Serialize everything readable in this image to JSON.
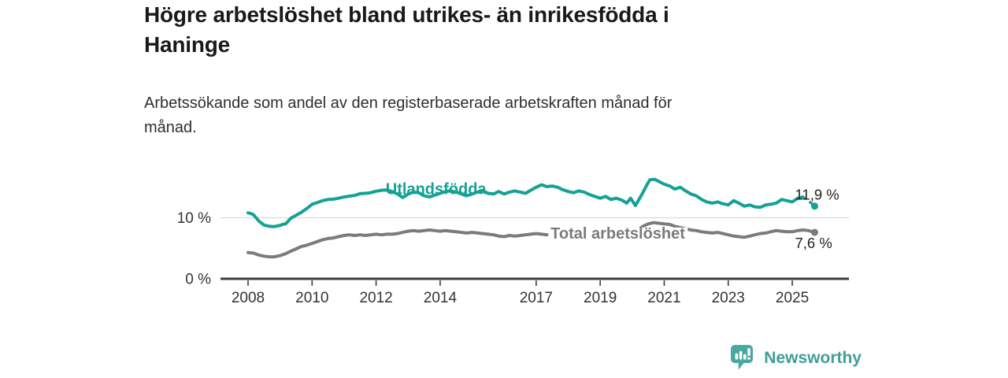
{
  "header": {
    "title_lines": [
      "Högre arbetslöshet bland utrikes- än inrikesfödda i",
      "Haninge"
    ],
    "subtitle_lines": [
      "Arbetssökande som andel av den registerbaserade arbetskraften månad för",
      "månad."
    ]
  },
  "chart_data": {
    "type": "line",
    "title": "Högre arbetslöshet bland utrikes- än inrikesfödda i Haninge",
    "subtitle": "Arbetssökande som andel av den registerbaserade arbetskraften månad för månad.",
    "grid": "horizontal-only",
    "legend": "inline-labels",
    "x_axis": {
      "unit": "year",
      "ticks": [
        2008,
        2010,
        2012,
        2014,
        2017,
        2019,
        2021,
        2023,
        2025
      ],
      "range_years": [
        2007.15,
        2026.8
      ]
    },
    "y_axis": {
      "unit": "%",
      "ticks": [
        {
          "value": 0,
          "label": "0 %"
        },
        {
          "value": 10,
          "label": "10 %"
        }
      ],
      "range": [
        0,
        18
      ]
    },
    "series": [
      {
        "name": "Total arbetslöshet",
        "color": "#7b7b7b",
        "end_value": 7.6,
        "end_label": "7,6 %",
        "end_label_position": "below",
        "label_anchor": {
          "year": 2017.45,
          "value": 6.6
        },
        "label_mask": true,
        "points": [
          [
            2008.0,
            4.3
          ],
          [
            2008.17,
            4.2
          ],
          [
            2008.33,
            3.9
          ],
          [
            2008.5,
            3.7
          ],
          [
            2008.67,
            3.6
          ],
          [
            2008.83,
            3.6
          ],
          [
            2009.0,
            3.8
          ],
          [
            2009.17,
            4.1
          ],
          [
            2009.33,
            4.5
          ],
          [
            2009.5,
            4.9
          ],
          [
            2009.67,
            5.3
          ],
          [
            2009.83,
            5.5
          ],
          [
            2010.0,
            5.8
          ],
          [
            2010.17,
            6.1
          ],
          [
            2010.33,
            6.4
          ],
          [
            2010.5,
            6.6
          ],
          [
            2010.67,
            6.7
          ],
          [
            2010.83,
            6.9
          ],
          [
            2011.0,
            7.1
          ],
          [
            2011.17,
            7.2
          ],
          [
            2011.33,
            7.1
          ],
          [
            2011.5,
            7.2
          ],
          [
            2011.67,
            7.1
          ],
          [
            2011.83,
            7.2
          ],
          [
            2012.0,
            7.3
          ],
          [
            2012.17,
            7.2
          ],
          [
            2012.33,
            7.3
          ],
          [
            2012.5,
            7.3
          ],
          [
            2012.67,
            7.4
          ],
          [
            2012.83,
            7.6
          ],
          [
            2013.0,
            7.8
          ],
          [
            2013.17,
            7.9
          ],
          [
            2013.33,
            7.8
          ],
          [
            2013.5,
            7.9
          ],
          [
            2013.67,
            8.0
          ],
          [
            2013.83,
            7.9
          ],
          [
            2014.0,
            7.8
          ],
          [
            2014.17,
            7.9
          ],
          [
            2014.33,
            7.8
          ],
          [
            2014.5,
            7.7
          ],
          [
            2014.67,
            7.6
          ],
          [
            2014.83,
            7.5
          ],
          [
            2015.0,
            7.6
          ],
          [
            2015.17,
            7.5
          ],
          [
            2015.33,
            7.4
          ],
          [
            2015.5,
            7.3
          ],
          [
            2015.67,
            7.2
          ],
          [
            2015.83,
            7.0
          ],
          [
            2016.0,
            6.9
          ],
          [
            2016.17,
            7.1
          ],
          [
            2016.33,
            7.0
          ],
          [
            2016.5,
            7.1
          ],
          [
            2016.67,
            7.2
          ],
          [
            2016.83,
            7.3
          ],
          [
            2017.0,
            7.4
          ],
          [
            2017.17,
            7.3
          ],
          [
            2017.33,
            7.2
          ],
          [
            2017.5,
            7.3
          ],
          [
            2017.67,
            7.2
          ],
          [
            2017.83,
            7.1
          ],
          [
            2018.0,
            7.2
          ],
          [
            2018.17,
            7.3
          ],
          [
            2018.33,
            7.2
          ],
          [
            2018.5,
            7.1
          ],
          [
            2018.67,
            7.0
          ],
          [
            2018.83,
            6.9
          ],
          [
            2019.0,
            7.0
          ],
          [
            2019.17,
            7.1
          ],
          [
            2019.33,
            7.0
          ],
          [
            2019.5,
            7.1
          ],
          [
            2019.67,
            7.0
          ],
          [
            2019.83,
            7.2
          ],
          [
            2020.0,
            7.4
          ],
          [
            2020.17,
            7.9
          ],
          [
            2020.33,
            8.6
          ],
          [
            2020.5,
            9.0
          ],
          [
            2020.67,
            9.2
          ],
          [
            2020.83,
            9.1
          ],
          [
            2021.0,
            9.0
          ],
          [
            2021.17,
            8.9
          ],
          [
            2021.33,
            8.6
          ],
          [
            2021.5,
            8.4
          ],
          [
            2021.67,
            8.2
          ],
          [
            2021.83,
            8.0
          ],
          [
            2022.0,
            7.9
          ],
          [
            2022.17,
            7.7
          ],
          [
            2022.33,
            7.6
          ],
          [
            2022.5,
            7.5
          ],
          [
            2022.67,
            7.6
          ],
          [
            2022.83,
            7.4
          ],
          [
            2023.0,
            7.2
          ],
          [
            2023.17,
            7.0
          ],
          [
            2023.33,
            6.9
          ],
          [
            2023.5,
            6.8
          ],
          [
            2023.67,
            7.0
          ],
          [
            2023.83,
            7.2
          ],
          [
            2024.0,
            7.4
          ],
          [
            2024.17,
            7.5
          ],
          [
            2024.33,
            7.7
          ],
          [
            2024.5,
            7.9
          ],
          [
            2024.67,
            7.8
          ],
          [
            2024.83,
            7.7
          ],
          [
            2025.0,
            7.7
          ],
          [
            2025.17,
            7.9
          ],
          [
            2025.33,
            8.0
          ],
          [
            2025.5,
            7.9
          ],
          [
            2025.7,
            7.6
          ]
        ]
      },
      {
        "name": "Utlandsfödda",
        "color": "#14a295",
        "end_value": 11.9,
        "end_label": "11,9 %",
        "end_label_position": "above",
        "label_anchor": {
          "year": 2012.3,
          "value": 13.85
        },
        "label_mask": false,
        "points": [
          [
            2008.0,
            10.8
          ],
          [
            2008.08,
            10.7
          ],
          [
            2008.17,
            10.5
          ],
          [
            2008.33,
            9.5
          ],
          [
            2008.5,
            8.8
          ],
          [
            2008.67,
            8.6
          ],
          [
            2008.83,
            8.55
          ],
          [
            2009.0,
            8.75
          ],
          [
            2009.08,
            8.9
          ],
          [
            2009.17,
            9.0
          ],
          [
            2009.25,
            9.4
          ],
          [
            2009.33,
            9.9
          ],
          [
            2009.5,
            10.4
          ],
          [
            2009.67,
            10.9
          ],
          [
            2009.83,
            11.5
          ],
          [
            2010.0,
            12.2
          ],
          [
            2010.17,
            12.5
          ],
          [
            2010.33,
            12.8
          ],
          [
            2010.5,
            13.0
          ],
          [
            2010.67,
            13.05
          ],
          [
            2010.83,
            13.2
          ],
          [
            2011.0,
            13.4
          ],
          [
            2011.17,
            13.55
          ],
          [
            2011.33,
            13.65
          ],
          [
            2011.5,
            13.95
          ],
          [
            2011.67,
            14.0
          ],
          [
            2011.83,
            14.1
          ],
          [
            2012.0,
            14.35
          ],
          [
            2012.17,
            14.5
          ],
          [
            2012.33,
            14.55
          ],
          [
            2012.5,
            14.3
          ],
          [
            2012.67,
            13.9
          ],
          [
            2012.83,
            13.3
          ],
          [
            2013.0,
            13.9
          ],
          [
            2013.17,
            14.2
          ],
          [
            2013.33,
            14.1
          ],
          [
            2013.5,
            13.6
          ],
          [
            2013.67,
            13.4
          ],
          [
            2013.83,
            13.7
          ],
          [
            2014.0,
            14.0
          ],
          [
            2014.17,
            14.3
          ],
          [
            2014.33,
            14.4
          ],
          [
            2014.5,
            14.2
          ],
          [
            2014.67,
            13.9
          ],
          [
            2014.83,
            13.6
          ],
          [
            2015.0,
            13.9
          ],
          [
            2015.17,
            14.2
          ],
          [
            2015.33,
            14.4
          ],
          [
            2015.5,
            14.0
          ],
          [
            2015.67,
            13.9
          ],
          [
            2015.83,
            14.3
          ],
          [
            2016.0,
            13.9
          ],
          [
            2016.17,
            14.2
          ],
          [
            2016.33,
            14.4
          ],
          [
            2016.5,
            14.2
          ],
          [
            2016.67,
            14.0
          ],
          [
            2016.83,
            14.5
          ],
          [
            2017.0,
            15.0
          ],
          [
            2017.17,
            15.4
          ],
          [
            2017.33,
            15.1
          ],
          [
            2017.5,
            15.2
          ],
          [
            2017.67,
            15.0
          ],
          [
            2017.83,
            14.6
          ],
          [
            2018.0,
            14.3
          ],
          [
            2018.17,
            14.1
          ],
          [
            2018.33,
            14.4
          ],
          [
            2018.5,
            14.2
          ],
          [
            2018.67,
            13.8
          ],
          [
            2018.83,
            13.5
          ],
          [
            2019.0,
            13.2
          ],
          [
            2019.17,
            13.5
          ],
          [
            2019.33,
            13.0
          ],
          [
            2019.5,
            13.2
          ],
          [
            2019.67,
            12.9
          ],
          [
            2019.83,
            12.4
          ],
          [
            2019.95,
            13.2
          ],
          [
            2020.1,
            12.0
          ],
          [
            2020.3,
            13.8
          ],
          [
            2020.45,
            15.3
          ],
          [
            2020.55,
            16.2
          ],
          [
            2020.7,
            16.3
          ],
          [
            2020.85,
            15.9
          ],
          [
            2021.0,
            15.5
          ],
          [
            2021.17,
            15.2
          ],
          [
            2021.33,
            14.7
          ],
          [
            2021.5,
            15.0
          ],
          [
            2021.67,
            14.4
          ],
          [
            2021.83,
            13.9
          ],
          [
            2022.0,
            13.6
          ],
          [
            2022.17,
            13.0
          ],
          [
            2022.33,
            12.6
          ],
          [
            2022.5,
            12.4
          ],
          [
            2022.67,
            12.6
          ],
          [
            2022.83,
            12.3
          ],
          [
            2023.0,
            12.1
          ],
          [
            2023.17,
            12.8
          ],
          [
            2023.33,
            12.4
          ],
          [
            2023.5,
            11.9
          ],
          [
            2023.67,
            12.1
          ],
          [
            2023.83,
            11.8
          ],
          [
            2024.0,
            11.7
          ],
          [
            2024.17,
            12.1
          ],
          [
            2024.33,
            12.2
          ],
          [
            2024.5,
            12.4
          ],
          [
            2024.67,
            13.0
          ],
          [
            2024.83,
            12.8
          ],
          [
            2025.0,
            12.6
          ],
          [
            2025.17,
            13.2
          ],
          [
            2025.33,
            13.4
          ]
        ],
        "dashed_tail": [
          [
            2025.33,
            13.4
          ],
          [
            2025.5,
            12.8
          ],
          [
            2025.7,
            11.9
          ]
        ]
      }
    ]
  },
  "footer": {
    "brand": "Newsworthy",
    "logo_icon": "bar-chart-speech-bubble",
    "brand_color": "#3f9e98",
    "icon_color": "#4aa8a1"
  }
}
